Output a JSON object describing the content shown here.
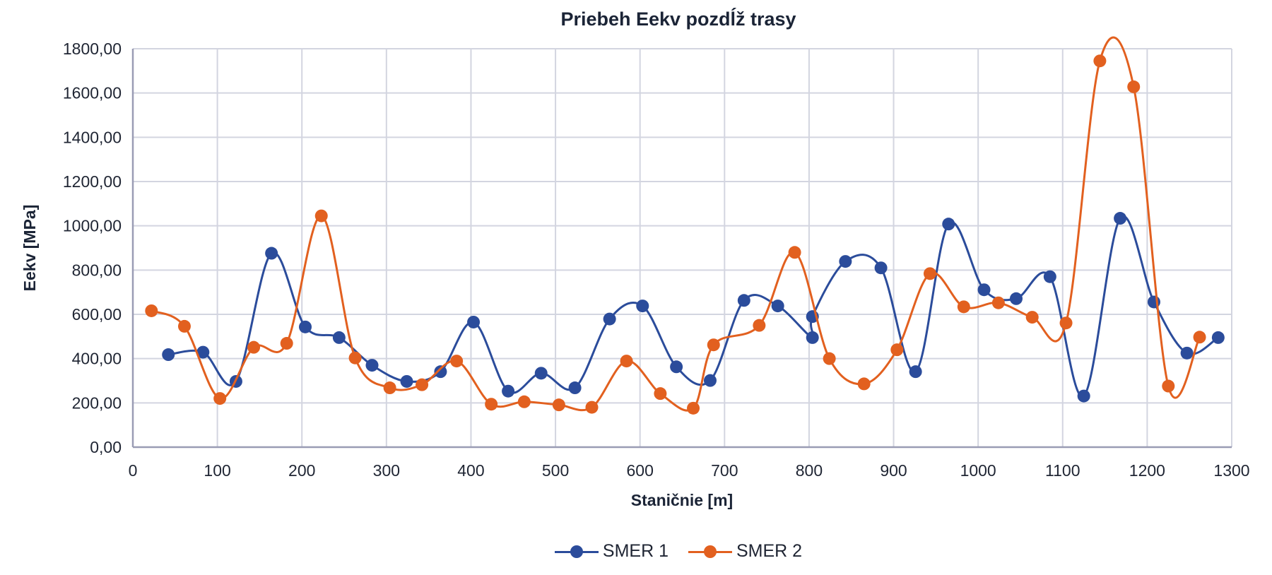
{
  "chart_data": {
    "type": "line",
    "title": "Priebeh Eekv pozdĺž trasy",
    "xlabel": "Staničnie [m]",
    "ylabel": "Eekv [MPa]",
    "xlim": [
      0,
      1300
    ],
    "ylim": [
      0,
      1800
    ],
    "x_ticks": [
      "0",
      "100",
      "200",
      "300",
      "400",
      "500",
      "600",
      "700",
      "800",
      "900",
      "1000",
      "1100",
      "1200",
      "1300"
    ],
    "y_ticks": [
      "0,00",
      "200,00",
      "400,00",
      "600,00",
      "800,00",
      "1000,00",
      "1200,00",
      "1400,00",
      "1600,00",
      "1800,00"
    ],
    "grid": true,
    "smoothed": true,
    "legend_position": "bottom",
    "series": [
      {
        "name": "SMER 1",
        "color": "#2b4c9b",
        "points": [
          [
            42,
            418
          ],
          [
            83,
            429
          ],
          [
            122,
            297
          ],
          [
            164,
            876
          ],
          [
            204,
            543
          ],
          [
            244,
            495
          ],
          [
            283,
            370
          ],
          [
            324,
            297
          ],
          [
            364,
            341
          ],
          [
            403,
            565
          ],
          [
            444,
            253
          ],
          [
            483,
            334
          ],
          [
            523,
            268
          ],
          [
            564,
            579
          ],
          [
            603,
            638
          ],
          [
            643,
            363
          ],
          [
            683,
            301
          ],
          [
            723,
            663
          ],
          [
            763,
            638
          ],
          [
            804,
            495
          ],
          [
            804,
            590
          ],
          [
            843,
            839
          ],
          [
            885,
            810
          ],
          [
            926,
            341
          ],
          [
            965,
            1008
          ],
          [
            1007,
            711
          ],
          [
            1045,
            671
          ],
          [
            1085,
            770
          ],
          [
            1125,
            231
          ],
          [
            1168,
            1034
          ],
          [
            1208,
            656
          ],
          [
            1247,
            425
          ],
          [
            1284,
            495
          ]
        ]
      },
      {
        "name": "SMER 2",
        "color": "#e2601f",
        "points": [
          [
            22,
            616
          ],
          [
            61,
            546
          ],
          [
            103,
            220
          ],
          [
            143,
            451
          ],
          [
            182,
            469
          ],
          [
            223,
            1045
          ],
          [
            263,
            403
          ],
          [
            304,
            268
          ],
          [
            342,
            282
          ],
          [
            383,
            389
          ],
          [
            424,
            194
          ],
          [
            463,
            205
          ],
          [
            504,
            191
          ],
          [
            543,
            180
          ],
          [
            584,
            389
          ],
          [
            624,
            242
          ],
          [
            663,
            176
          ],
          [
            687,
            462
          ],
          [
            741,
            550
          ],
          [
            783,
            880
          ],
          [
            824,
            400
          ],
          [
            865,
            286
          ],
          [
            904,
            440
          ],
          [
            943,
            784
          ],
          [
            983,
            634
          ],
          [
            1024,
            652
          ],
          [
            1064,
            587
          ],
          [
            1104,
            561
          ],
          [
            1144,
            1745
          ],
          [
            1184,
            1628
          ],
          [
            1225,
            276
          ],
          [
            1262,
            497
          ]
        ]
      }
    ]
  }
}
